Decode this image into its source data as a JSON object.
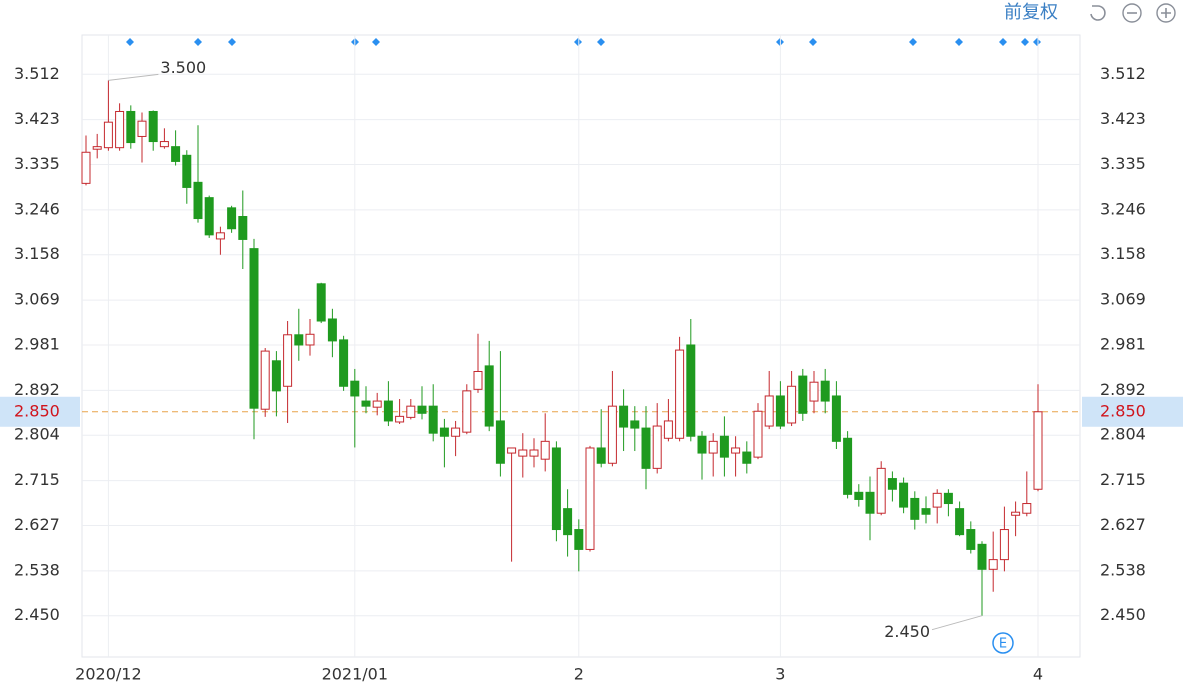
{
  "toolbar": {
    "label": "前复权"
  },
  "chart_data": {
    "type": "candlestick",
    "categories": [
      null,
      null,
      "2020/12",
      null,
      null,
      null,
      null,
      null,
      null,
      null,
      null,
      null,
      null,
      null,
      null,
      null,
      null,
      null,
      null,
      null,
      null,
      null,
      null,
      null,
      "2021/01",
      null,
      null,
      null,
      null,
      null,
      null,
      null,
      null,
      null,
      null,
      null,
      null,
      null,
      null,
      null,
      null,
      null,
      null,
      null,
      "2",
      null,
      null,
      null,
      null,
      null,
      null,
      null,
      null,
      null,
      null,
      null,
      null,
      null,
      null,
      null,
      null,
      null,
      "3",
      null,
      null,
      null,
      null,
      null,
      null,
      null,
      null,
      null,
      null,
      null,
      null,
      null,
      null,
      null,
      null,
      null,
      null,
      null,
      null,
      null,
      null,
      "4"
    ],
    "open": [
      3.298,
      3.365,
      3.368,
      3.368,
      3.439,
      3.39,
      3.439,
      3.37,
      3.37,
      3.353,
      3.3,
      3.27,
      3.189,
      3.25,
      3.233,
      3.17,
      2.855,
      2.95,
      2.9,
      3.001,
      2.981,
      3.101,
      3.032,
      2.991,
      2.91,
      2.871,
      2.859,
      2.871,
      2.83,
      2.839,
      2.861,
      2.861,
      2.818,
      2.802,
      2.81,
      2.894,
      2.94,
      2.832,
      2.769,
      2.763,
      2.763,
      2.757,
      2.779,
      2.66,
      2.619,
      2.58,
      2.779,
      2.749,
      2.861,
      2.832,
      2.818,
      2.739,
      2.798,
      2.798,
      2.981,
      2.802,
      2.769,
      2.802,
      2.769,
      2.771,
      2.761,
      2.822,
      2.881,
      2.828,
      2.92,
      2.871,
      2.91,
      2.881,
      2.798,
      2.692,
      2.692,
      2.651,
      2.719,
      2.71,
      2.68,
      2.66,
      2.663,
      2.69,
      2.66,
      2.619,
      2.59,
      2.541,
      2.56,
      2.647,
      2.651,
      2.698
    ],
    "high": [
      3.392,
      3.395,
      3.5,
      3.455,
      3.451,
      3.437,
      3.441,
      3.406,
      3.402,
      3.363,
      3.412,
      3.274,
      3.213,
      3.254,
      3.284,
      3.189,
      2.975,
      2.969,
      3.028,
      3.052,
      3.032,
      3.103,
      3.052,
      2.999,
      2.934,
      2.9,
      2.887,
      2.91,
      2.875,
      2.875,
      2.9,
      2.904,
      2.836,
      2.832,
      2.904,
      3.003,
      2.989,
      2.969,
      2.779,
      2.808,
      2.798,
      2.847,
      2.792,
      2.698,
      2.639,
      2.783,
      2.855,
      2.93,
      2.894,
      2.861,
      2.861,
      2.867,
      2.875,
      2.997,
      3.032,
      2.812,
      2.808,
      2.841,
      2.802,
      2.792,
      2.867,
      2.93,
      2.91,
      2.93,
      2.934,
      2.93,
      2.934,
      2.91,
      2.812,
      2.708,
      2.723,
      2.753,
      2.733,
      2.721,
      2.694,
      2.684,
      2.698,
      2.698,
      2.674,
      2.635,
      2.596,
      2.615,
      2.664,
      2.674,
      2.733,
      2.904
    ],
    "low": [
      3.294,
      3.347,
      3.362,
      3.362,
      3.366,
      3.339,
      3.362,
      3.366,
      3.333,
      3.258,
      3.221,
      3.191,
      3.158,
      3.201,
      3.13,
      2.796,
      2.84,
      2.841,
      2.828,
      2.95,
      2.96,
      3.024,
      2.957,
      2.891,
      2.78,
      2.847,
      2.843,
      2.822,
      2.826,
      2.835,
      2.835,
      2.792,
      2.741,
      2.763,
      2.806,
      2.887,
      2.812,
      2.723,
      2.556,
      2.721,
      2.741,
      2.733,
      2.596,
      2.566,
      2.537,
      2.576,
      2.741,
      2.743,
      2.773,
      2.773,
      2.698,
      2.729,
      2.792,
      2.792,
      2.792,
      2.717,
      2.723,
      2.723,
      2.723,
      2.729,
      2.757,
      2.816,
      2.816,
      2.822,
      2.832,
      2.847,
      2.847,
      2.777,
      2.68,
      2.664,
      2.598,
      2.647,
      2.674,
      2.651,
      2.619,
      2.631,
      2.631,
      2.645,
      2.606,
      2.572,
      2.45,
      2.497,
      2.537,
      2.606,
      2.645,
      2.694
    ],
    "close": [
      3.359,
      3.37,
      3.418,
      3.439,
      3.378,
      3.42,
      3.38,
      3.38,
      3.341,
      3.29,
      3.229,
      3.197,
      3.201,
      3.209,
      3.188,
      2.857,
      2.969,
      2.891,
      3.001,
      2.981,
      3.002,
      3.028,
      2.989,
      2.9,
      2.881,
      2.861,
      2.871,
      2.832,
      2.841,
      2.861,
      2.847,
      2.808,
      2.802,
      2.818,
      2.891,
      2.929,
      2.822,
      2.749,
      2.779,
      2.775,
      2.775,
      2.792,
      2.619,
      2.609,
      2.58,
      2.779,
      2.749,
      2.861,
      2.82,
      2.818,
      2.739,
      2.822,
      2.832,
      2.971,
      2.802,
      2.769,
      2.792,
      2.761,
      2.779,
      2.749,
      2.851,
      2.881,
      2.822,
      2.9,
      2.847,
      2.908,
      2.871,
      2.792,
      2.688,
      2.678,
      2.651,
      2.739,
      2.698,
      2.663,
      2.639,
      2.649,
      2.69,
      2.67,
      2.609,
      2.58,
      2.541,
      2.56,
      2.619,
      2.653,
      2.67,
      2.85
    ],
    "up_color": "#c4282e",
    "down_color": "#1f9a1f",
    "ylim": [
      2.369,
      3.589
    ],
    "yticks": [
      3.512,
      3.423,
      3.335,
      3.246,
      3.158,
      3.069,
      2.981,
      2.892,
      2.804,
      2.715,
      2.627,
      2.538,
      {
        "value": 2.45,
        "label": "2.450"
      }
    ],
    "grid": true,
    "price_line": {
      "value": 2.85,
      "label": "2.850",
      "color": "#e8a34a"
    },
    "annotations": [
      {
        "value": 3.5,
        "label": "3.500"
      },
      {
        "value": 2.45,
        "label": "2.450"
      }
    ],
    "event_icon": "E"
  }
}
